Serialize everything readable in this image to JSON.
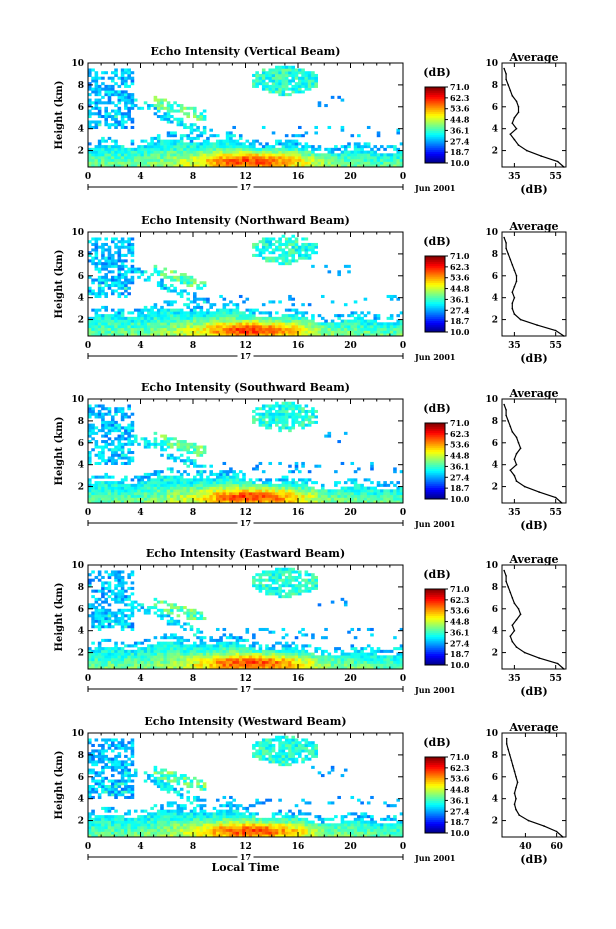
{
  "chart_data": [
    {
      "type": "heatmap",
      "title": "Echo Intensity (Vertical Beam)",
      "ylabel": "Height (km)",
      "xlabel": "",
      "xlim": [
        0,
        24
      ],
      "ylim": [
        0.5,
        10
      ],
      "x_ticks": [
        "0",
        "4",
        "8",
        "12",
        "16",
        "20",
        "0"
      ],
      "y_ticks": [
        "2",
        "4",
        "6",
        "8",
        "10"
      ],
      "date_day": "17",
      "date_label": "Jun 2001",
      "colorbar": {
        "unit": "(dB)",
        "ticks": [
          "71.0",
          "62.3",
          "53.6",
          "44.8",
          "36.1",
          "27.4",
          "18.7",
          "10.0"
        ],
        "range": [
          10.0,
          71.0
        ]
      },
      "profile": {
        "title": "Average",
        "xlabel": "(dB)",
        "xticks": [
          "35",
          "55"
        ],
        "xlim": [
          29,
          60
        ],
        "heights": [
          0.5,
          1.0,
          1.5,
          2.0,
          2.5,
          3.0,
          3.5,
          4.0,
          4.5,
          5.0,
          5.5,
          6.0,
          6.5,
          7.0,
          7.5,
          8.0,
          8.5,
          9.0,
          9.5
        ],
        "values": [
          59,
          56,
          48,
          41,
          37,
          35,
          33,
          36,
          34,
          35,
          37,
          37,
          36,
          34,
          33,
          32,
          31,
          31,
          30
        ]
      }
    },
    {
      "type": "heatmap",
      "title": "Echo Intensity (Northward Beam)",
      "ylabel": "Height (km)",
      "xlabel": "",
      "xlim": [
        0,
        24
      ],
      "ylim": [
        0.5,
        10
      ],
      "x_ticks": [
        "0",
        "4",
        "8",
        "12",
        "16",
        "20",
        "0"
      ],
      "y_ticks": [
        "2",
        "4",
        "6",
        "8",
        "10"
      ],
      "date_day": "17",
      "date_label": "Jun 2001",
      "colorbar": {
        "unit": "(dB)",
        "ticks": [
          "71.0",
          "62.3",
          "53.6",
          "44.8",
          "36.1",
          "27.4",
          "18.7",
          "10.0"
        ],
        "range": [
          10.0,
          71.0
        ]
      },
      "profile": {
        "title": "Average",
        "xlabel": "(dB)",
        "xticks": [
          "35",
          "55"
        ],
        "xlim": [
          29,
          60
        ],
        "heights": [
          0.5,
          1.0,
          1.5,
          2.0,
          2.5,
          3.0,
          3.5,
          4.0,
          4.5,
          5.0,
          5.5,
          6.0,
          6.5,
          7.0,
          7.5,
          8.0,
          8.5,
          9.0,
          9.5
        ],
        "values": [
          59,
          55,
          46,
          38,
          35,
          34,
          34,
          35,
          34,
          35,
          36,
          36,
          35,
          34,
          33,
          32,
          31,
          31,
          30
        ]
      }
    },
    {
      "type": "heatmap",
      "title": "Echo Intensity (Southward Beam)",
      "ylabel": "Height (km)",
      "xlabel": "",
      "xlim": [
        0,
        24
      ],
      "ylim": [
        0.5,
        10
      ],
      "x_ticks": [
        "0",
        "4",
        "8",
        "12",
        "16",
        "20",
        "0"
      ],
      "y_ticks": [
        "2",
        "4",
        "6",
        "8",
        "10"
      ],
      "date_day": "17",
      "date_label": "Jun 2001",
      "colorbar": {
        "unit": "(dB)",
        "ticks": [
          "71.0",
          "62.3",
          "53.6",
          "44.8",
          "36.1",
          "27.4",
          "18.7",
          "10.0"
        ],
        "range": [
          10.0,
          71.0
        ]
      },
      "profile": {
        "title": "Average",
        "xlabel": "(dB)",
        "xticks": [
          "35",
          "55"
        ],
        "xlim": [
          29,
          60
        ],
        "heights": [
          0.5,
          1.0,
          1.5,
          2.0,
          2.5,
          3.0,
          3.5,
          4.0,
          4.5,
          5.0,
          5.5,
          6.0,
          6.5,
          7.0,
          7.5,
          8.0,
          8.5,
          9.0,
          9.5
        ],
        "values": [
          58,
          55,
          47,
          40,
          36,
          35,
          33,
          36,
          35,
          36,
          38,
          37,
          36,
          34,
          33,
          32,
          31,
          31,
          30
        ]
      }
    },
    {
      "type": "heatmap",
      "title": "Echo Intensity (Eastward Beam)",
      "ylabel": "Height (km)",
      "xlabel": "",
      "xlim": [
        0,
        24
      ],
      "ylim": [
        0.5,
        10
      ],
      "x_ticks": [
        "0",
        "4",
        "8",
        "12",
        "16",
        "20",
        "0"
      ],
      "y_ticks": [
        "2",
        "4",
        "6",
        "8",
        "10"
      ],
      "date_day": "17",
      "date_label": "Jun 2001",
      "colorbar": {
        "unit": "(dB)",
        "ticks": [
          "71.0",
          "62.3",
          "53.6",
          "44.8",
          "36.1",
          "27.4",
          "18.7",
          "10.0"
        ],
        "range": [
          10.0,
          71.0
        ]
      },
      "profile": {
        "title": "Average",
        "xlabel": "(dB)",
        "xticks": [
          "35",
          "55"
        ],
        "xlim": [
          29,
          60
        ],
        "heights": [
          0.5,
          1.0,
          1.5,
          2.0,
          2.5,
          3.0,
          3.5,
          4.0,
          4.5,
          5.0,
          5.5,
          6.0,
          6.5,
          7.0,
          7.5,
          8.0,
          8.5,
          9.0,
          9.5
        ],
        "values": [
          59,
          56,
          47,
          40,
          36,
          34,
          33,
          35,
          34,
          36,
          38,
          37,
          35,
          34,
          33,
          32,
          31,
          31,
          30
        ]
      }
    },
    {
      "type": "heatmap",
      "title": "Echo Intensity (Westward Beam)",
      "ylabel": "Height (km)",
      "xlabel": "Local Time",
      "xlim": [
        0,
        24
      ],
      "ylim": [
        0.5,
        10
      ],
      "x_ticks": [
        "0",
        "4",
        "8",
        "12",
        "16",
        "20",
        "0"
      ],
      "y_ticks": [
        "2",
        "4",
        "6",
        "8",
        "10"
      ],
      "date_day": "17",
      "date_label": "Jun 2001",
      "colorbar": {
        "unit": "(dB)",
        "ticks": [
          "71.0",
          "62.3",
          "53.6",
          "44.8",
          "36.1",
          "27.4",
          "18.7",
          "10.0"
        ],
        "range": [
          10.0,
          71.0
        ]
      },
      "profile": {
        "title": "Average",
        "xlabel": "(dB)",
        "xticks": [
          "40",
          "60"
        ],
        "xlim": [
          25,
          66
        ],
        "heights": [
          0.5,
          1.0,
          1.5,
          2.0,
          2.5,
          3.0,
          3.5,
          4.0,
          4.5,
          5.0,
          5.5,
          6.0,
          6.5,
          7.0,
          7.5,
          8.0,
          8.5,
          9.0,
          9.5
        ],
        "values": [
          64,
          60,
          52,
          42,
          36,
          34,
          33,
          34,
          33,
          34,
          35,
          34,
          33,
          32,
          31,
          30,
          29,
          28,
          28
        ]
      }
    }
  ]
}
